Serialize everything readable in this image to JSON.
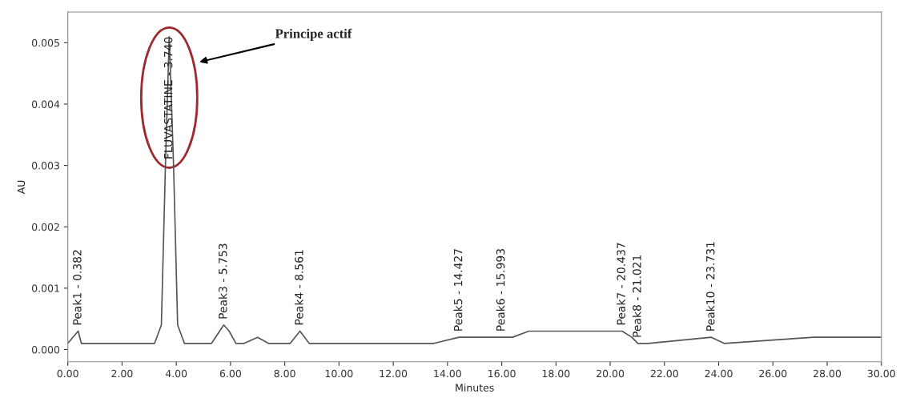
{
  "chart_data": {
    "type": "line",
    "xlabel": "Minutes",
    "ylabel": "AU",
    "x": [
      0,
      0.382,
      0.5,
      3.2,
      3.45,
      3.6,
      3.74,
      3.9,
      4.05,
      4.3,
      5.3,
      5.6,
      5.753,
      5.95,
      6.2,
      6.5,
      7.0,
      7.4,
      8.2,
      8.561,
      8.9,
      12,
      13.5,
      14.427,
      15,
      15.993,
      16.4,
      17,
      18.2,
      19.5,
      20.437,
      20.8,
      21.021,
      21.4,
      23.731,
      24.2,
      27.5,
      30
    ],
    "series": [
      {
        "color": "#555555",
        "values": [
          0.0001,
          0.0003,
          0.0001,
          0.0001,
          0.0004,
          0.003,
          0.0051,
          0.003,
          0.0004,
          0.0001,
          0.0001,
          0.0003,
          0.0004,
          0.0003,
          0.0001,
          0.0001,
          0.0002,
          0.0001,
          0.0001,
          0.0003,
          0.0001,
          0.0001,
          0.0001,
          0.0002,
          0.0002,
          0.0002,
          0.0002,
          0.0003,
          0.0003,
          0.0003,
          0.0003,
          0.0002,
          0.0001,
          0.0001,
          0.0002,
          0.0001,
          0.0002,
          0.0002
        ]
      }
    ],
    "xlim": [
      0,
      30
    ],
    "ylim": [
      -0.0002,
      0.0055
    ],
    "xticks": [
      {
        "value": 0,
        "label": "0.00"
      },
      {
        "value": 2,
        "label": "2.00"
      },
      {
        "value": 4,
        "label": "4.00"
      },
      {
        "value": 6,
        "label": "6.00"
      },
      {
        "value": 8,
        "label": "8.00"
      },
      {
        "value": 10,
        "label": "10.00"
      },
      {
        "value": 12,
        "label": "12.00"
      },
      {
        "value": 14,
        "label": "14.00"
      },
      {
        "value": 16,
        "label": "16.00"
      },
      {
        "value": 18,
        "label": "18.00"
      },
      {
        "value": 20,
        "label": "20.00"
      },
      {
        "value": 22,
        "label": "22.00"
      },
      {
        "value": 24,
        "label": "24.00"
      },
      {
        "value": 26,
        "label": "26.00"
      },
      {
        "value": 28,
        "label": "28.00"
      },
      {
        "value": 30,
        "label": "30.00"
      }
    ],
    "yticks": [
      {
        "value": 0,
        "label": "0.000"
      },
      {
        "value": 0.001,
        "label": "0.001"
      },
      {
        "value": 0.002,
        "label": "0.002"
      },
      {
        "value": 0.003,
        "label": "0.003"
      },
      {
        "value": 0.004,
        "label": "0.004"
      },
      {
        "value": 0.005,
        "label": "0.005"
      }
    ],
    "grid": false,
    "legend": false,
    "marker": "none",
    "line_style": "solid",
    "annotations": [
      {
        "text": "Peak1 - 0.382",
        "x": 0.382,
        "y": 0.0003
      },
      {
        "text": "FLUVASTATINE - 3.740",
        "x": 3.74,
        "y": 0.0051
      },
      {
        "text": "Peak3 - 5.753",
        "x": 5.753,
        "y": 0.0004
      },
      {
        "text": "Peak4 - 8.561",
        "x": 8.561,
        "y": 0.0003
      },
      {
        "text": "Peak5 - 14.427",
        "x": 14.427,
        "y": 0.0002
      },
      {
        "text": "Peak6 - 15.993",
        "x": 15.993,
        "y": 0.0002
      },
      {
        "text": "Peak7 - 20.437",
        "x": 20.437,
        "y": 0.0003
      },
      {
        "text": "Peak8 - 21.021",
        "x": 21.021,
        "y": 0.0001
      },
      {
        "text": "Peak10 - 23.731",
        "x": 23.731,
        "y": 0.0002
      },
      "Principe actif"
    ]
  }
}
